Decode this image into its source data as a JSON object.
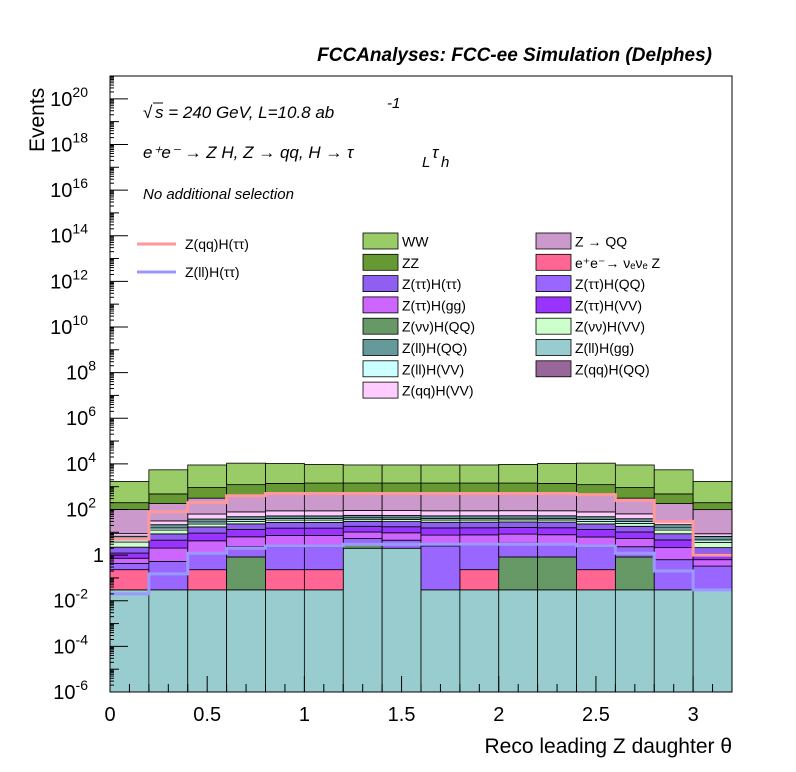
{
  "title": "FCCAnalyses: FCC-ee Simulation (Delphes)",
  "annotations": {
    "sqrt": "√",
    "energy": "s = 240 GeV, L=10.8 ab",
    "energy_exp": "-1",
    "process": "e⁺e⁻ → Z H, Z → qq, H → τ",
    "process_sub1": "L",
    "process_tau": "τ",
    "process_sub2": "h",
    "selection": "No additional selection"
  },
  "chart_data": {
    "type": "histogram",
    "xlabel": "Reco leading Z daughter θ",
    "ylabel": "Events",
    "xlim": [
      0,
      3.2
    ],
    "ylim": [
      1e-06,
      1e+21
    ],
    "yscale": "log",
    "x_ticks": [
      {
        "v": 0,
        "label": "0"
      },
      {
        "v": 0.5,
        "label": "0.5"
      },
      {
        "v": 1,
        "label": "1"
      },
      {
        "v": 1.5,
        "label": "1.5"
      },
      {
        "v": 2,
        "label": "2"
      },
      {
        "v": 2.5,
        "label": "2.5"
      },
      {
        "v": 3,
        "label": "3"
      }
    ],
    "y_ticks": [
      {
        "v": 1e-06,
        "base": "10",
        "exp": "-6"
      },
      {
        "v": 0.0001,
        "base": "10",
        "exp": "-4"
      },
      {
        "v": 0.01,
        "base": "10",
        "exp": "-2"
      },
      {
        "v": 1,
        "base": "1",
        "exp": ""
      },
      {
        "v": 100.0,
        "base": "10",
        "exp": "2"
      },
      {
        "v": 10000.0,
        "base": "10",
        "exp": "4"
      },
      {
        "v": 1000000.0,
        "base": "10",
        "exp": "6"
      },
      {
        "v": 100000000.0,
        "base": "10",
        "exp": "8"
      },
      {
        "v": 10000000000.0,
        "base": "10",
        "exp": "10"
      },
      {
        "v": 1000000000000.0,
        "base": "10",
        "exp": "12"
      },
      {
        "v": 100000000000000.0,
        "base": "10",
        "exp": "14"
      },
      {
        "v": 1e+16,
        "base": "10",
        "exp": "16"
      },
      {
        "v": 1e+18,
        "base": "10",
        "exp": "18"
      },
      {
        "v": 1e+20,
        "base": "10",
        "exp": "20"
      }
    ],
    "bin_edges": [
      0,
      0.2,
      0.4,
      0.6,
      0.8,
      1.0,
      1.2,
      1.4,
      1.6,
      1.8,
      2.0,
      2.2,
      2.4,
      2.6,
      2.8,
      3.0,
      3.2
    ],
    "stack": [
      {
        "name": "Z(ll)H(gg)",
        "color": "#99ccce",
        "values": [
          0.03,
          0.03,
          0.03,
          0.03,
          0.03,
          0.03,
          2,
          2,
          0.03,
          0.03,
          0.03,
          0.03,
          0.03,
          0.03,
          0.03,
          0.03
        ]
      },
      {
        "name": "e⁺e⁻→ νₑνₑ Z",
        "color": "#ff6694",
        "values": [
          0.2,
          0,
          0.2,
          0,
          0.2,
          0.2,
          0,
          0,
          0,
          0.2,
          0,
          0,
          0.2,
          0,
          0,
          0
        ]
      },
      {
        "name": "Z(νν)H(QQ)",
        "color": "#669966",
        "values": [
          0,
          0,
          0,
          0.8,
          0,
          0,
          0.8,
          0,
          0,
          0,
          0.8,
          0.8,
          0,
          0.8,
          0,
          0
        ]
      },
      {
        "name": "Z(qq)H(QQ)",
        "color": "#996699",
        "values": [
          0,
          0,
          0,
          0,
          0,
          0,
          0,
          0,
          0,
          0.0003,
          0,
          0,
          0,
          0,
          0,
          0
        ]
      },
      {
        "name": "Z(ττ)H(QQ)",
        "color": "#9966ff",
        "values": [
          0.2,
          0.5,
          1,
          1.5,
          2,
          2,
          2.5,
          2.5,
          2.5,
          2.5,
          2.5,
          2,
          2,
          1.5,
          0.6,
          0.3
        ]
      },
      {
        "name": "Z(ττ)H(gg)",
        "color": "#cc66ff",
        "values": [
          0.3,
          1.5,
          3,
          4,
          5,
          5,
          5,
          5,
          5,
          5,
          5,
          5,
          4,
          3,
          1.5,
          0.3
        ]
      },
      {
        "name": "Z(ττ)H(VV)",
        "color": "#9933ff",
        "values": [
          0.5,
          2.5,
          5,
          7,
          8,
          8,
          8,
          8,
          8,
          8,
          8,
          8,
          7,
          5,
          2.5,
          0.5
        ]
      },
      {
        "name": "Z(ττ)H(ττ)",
        "color": "#8f5ff2",
        "values": [
          1,
          4,
          8,
          10,
          12,
          12,
          12,
          12,
          12,
          12,
          12,
          12,
          10,
          8,
          4,
          1
        ]
      },
      {
        "name": "Z(νν)H(VV)",
        "color": "#ccffcc",
        "values": [
          1.5,
          4,
          6,
          7,
          7,
          7,
          7,
          7,
          7,
          7,
          7,
          7,
          7,
          6,
          4,
          1.5
        ]
      },
      {
        "name": "Z(ll)H(VV)",
        "color": "#ccffff",
        "values": [
          1,
          3,
          5,
          6,
          6,
          6,
          6,
          6,
          6,
          6,
          6,
          6,
          6,
          5,
          3,
          1
        ]
      },
      {
        "name": "Z(ll)H(QQ)",
        "color": "#669999",
        "values": [
          2,
          6,
          10,
          12,
          12,
          12,
          12,
          12,
          12,
          12,
          12,
          12,
          12,
          10,
          6,
          2
        ]
      },
      {
        "name": "Z(qq)H(VV)",
        "color": "#ffccff",
        "values": [
          2,
          10,
          25,
          30,
          35,
          35,
          35,
          35,
          35,
          35,
          35,
          35,
          30,
          25,
          10,
          2
        ]
      },
      {
        "name": "Z → QQ",
        "color": "#cc99cc",
        "values": [
          90,
          150,
          250,
          350,
          400,
          400,
          400,
          400,
          400,
          400,
          400,
          400,
          350,
          250,
          150,
          90
        ]
      },
      {
        "name": "ZZ",
        "color": "#669933",
        "values": [
          100,
          300,
          600,
          800,
          900,
          950,
          950,
          950,
          950,
          950,
          950,
          900,
          800,
          600,
          300,
          100
        ]
      },
      {
        "name": "WW",
        "color": "#99cc66",
        "values": [
          1500,
          5000,
          8000,
          9500,
          9000,
          8000,
          7500,
          7500,
          7500,
          7500,
          8000,
          9000,
          9500,
          8000,
          5000,
          1500
        ]
      }
    ],
    "signals": [
      {
        "name": "Z(qq)H(ττ)",
        "color": "#ff9999",
        "values": [
          5,
          80,
          200,
          400,
          500,
          500,
          500,
          500,
          500,
          500,
          500,
          500,
          450,
          250,
          30,
          1
        ]
      },
      {
        "name": "Z(ll)H(ττ)",
        "color": "#9999ff",
        "values": [
          0.02,
          0.15,
          1.2,
          2,
          2.5,
          2.5,
          3,
          3,
          3,
          3,
          3,
          3,
          2.5,
          1.2,
          0.2,
          0.03
        ]
      }
    ],
    "legend_signals": [
      "Z(qq)H(ττ)",
      "Z(ll)H(ττ)"
    ],
    "legend_left": [
      "WW",
      "ZZ",
      "Z(ττ)H(ττ)",
      "Z(ττ)H(gg)",
      "Z(νν)H(QQ)",
      "Z(ll)H(QQ)",
      "Z(ll)H(VV)",
      "Z(qq)H(VV)"
    ],
    "legend_right": [
      "Z → QQ",
      "e⁺e⁻→ νₑνₑ Z",
      "Z(ττ)H(QQ)",
      "Z(ττ)H(VV)",
      "Z(νν)H(VV)",
      "Z(ll)H(gg)",
      "Z(qq)H(QQ)"
    ]
  }
}
